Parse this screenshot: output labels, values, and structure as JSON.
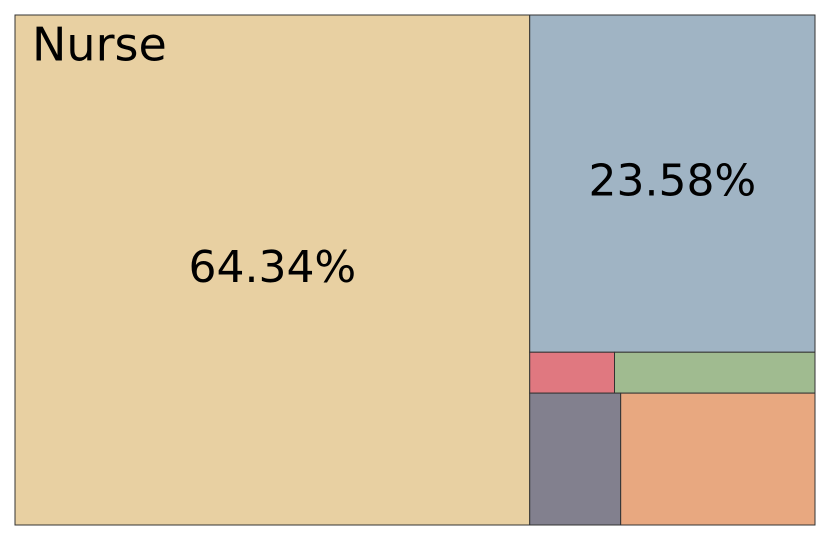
{
  "chart_data": {
    "type": "treemap",
    "categories": [
      "Nurse",
      null,
      null,
      null,
      null,
      null
    ],
    "values": [
      64.34,
      23.58,
      0.85,
      2.01,
      2.94,
      6.28
    ],
    "value_labels": [
      "64.34%",
      "23.58%",
      null,
      null,
      null,
      null
    ],
    "colors": [
      "#e8d0a2",
      "#a0b4c4",
      "#e07880",
      "#a0bb90",
      "#82808e",
      "#e8a880"
    ]
  }
}
